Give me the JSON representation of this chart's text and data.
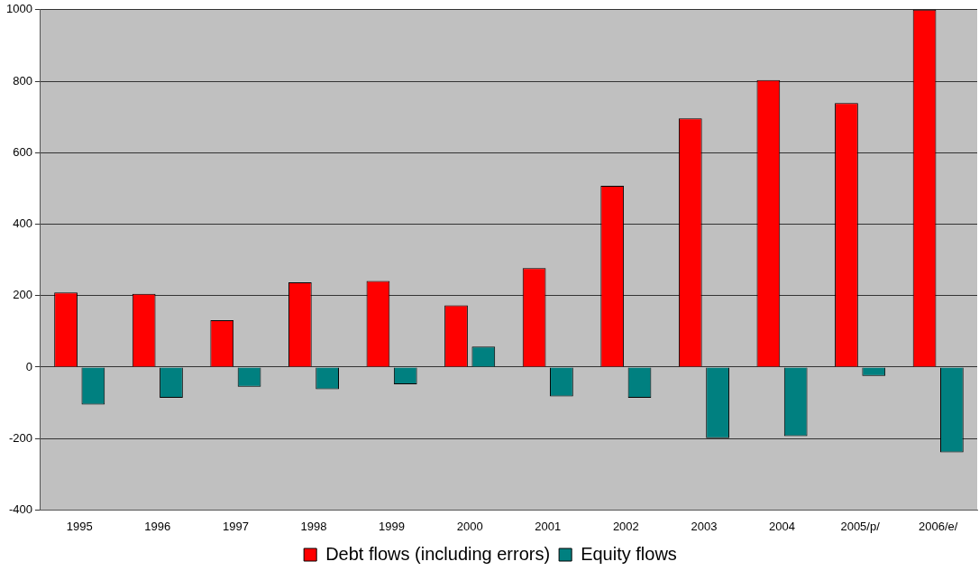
{
  "chart_data": {
    "type": "bar",
    "categories": [
      "1995",
      "1996",
      "1997",
      "1998",
      "1999",
      "2000",
      "2001",
      "2002",
      "2003",
      "2004",
      "2005/p/",
      "2006/e/"
    ],
    "series": [
      {
        "name": "Debt flows (including errors)",
        "color": "#ff0000",
        "values": [
          209,
          205,
          131,
          237,
          241,
          173,
          277,
          507,
          696,
          803,
          739,
          1000
        ]
      },
      {
        "name": "Equity flows",
        "color": "#008080",
        "values": [
          -105,
          -86,
          -55,
          -62,
          -48,
          57,
          -82,
          -86,
          -199,
          -193,
          -25,
          -239
        ]
      }
    ],
    "ylim": [
      -400,
      1000
    ],
    "yticks": [
      -400,
      -200,
      0,
      200,
      400,
      600,
      800,
      1000
    ],
    "grid": "y",
    "legend": "bottom"
  }
}
